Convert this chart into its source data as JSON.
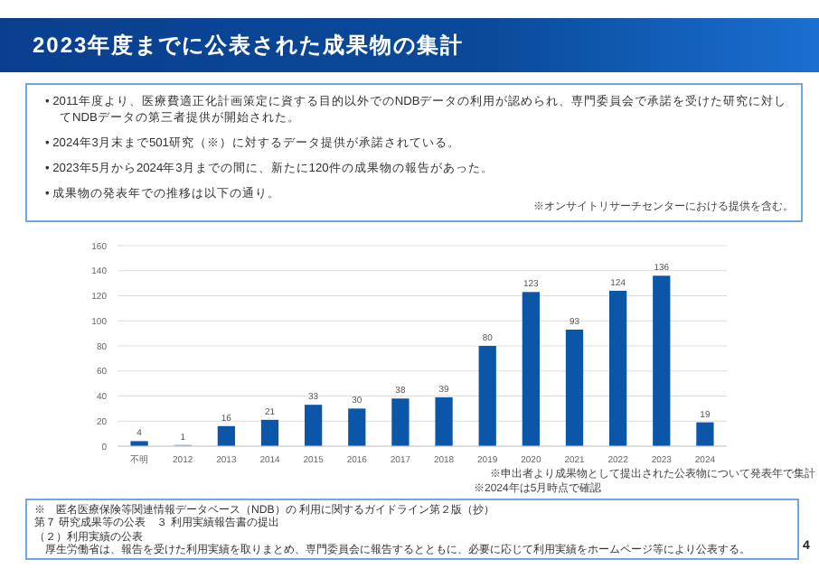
{
  "chart_data": {
    "type": "bar",
    "title": "2023年度までに公表された成果物の集計",
    "categories": [
      "不明",
      "2012",
      "2013",
      "2014",
      "2015",
      "2016",
      "2017",
      "2018",
      "2019",
      "2020",
      "2021",
      "2022",
      "2023",
      "2024"
    ],
    "values": [
      4,
      1,
      16,
      21,
      33,
      30,
      38,
      39,
      80,
      123,
      93,
      124,
      136,
      19
    ],
    "colors": [
      "#0b56a8",
      "#6fa8e0",
      "#0b56a8",
      "#0b56a8",
      "#0b56a8",
      "#0b56a8",
      "#0b56a8",
      "#0b56a8",
      "#0b56a8",
      "#0b56a8",
      "#0b56a8",
      "#0b56a8",
      "#0b56a8",
      "#0b56a8"
    ],
    "ylim": [
      0,
      160
    ],
    "yticks": [
      0,
      20,
      40,
      60,
      80,
      100,
      120,
      140,
      160
    ],
    "grid": "y",
    "data_labels": true,
    "annotations": [
      "• 2011年度より、医療費適正化計画策定に資する目的以外でのNDBデータの利用が認められ、専門委員会で承諾を受けた研究に対してNDBデータの第三者提供が開始された。",
      "• 2024年3月末まで501研究（※）に対するデータ提供が承諾されている。",
      "• 2023年5月から2024年3月までの間に、新たに120件の成果物の報告があった。",
      "• 成果物の発表年での推移は以下の通り。",
      "※オンサイトリサーチセンターにおける提供を含む。",
      "※申出者より成果物として提出された公表物について発表年で集計",
      "※2024年は5月時点で確認",
      "※　匿名医療保険等関連情報データベース（NDB）の 利用に関するガイドライン第２版（抄）",
      "第７ 研究成果等の公表　３ 利用実績報告書の提出",
      "（２）利用実績の公表",
      "厚生労働省は、報告を受けた利用実績を取りまとめ、専門委員会に報告するとともに、必要に応じて利用実績をホームページ等により公表する。",
      "4"
    ]
  }
}
